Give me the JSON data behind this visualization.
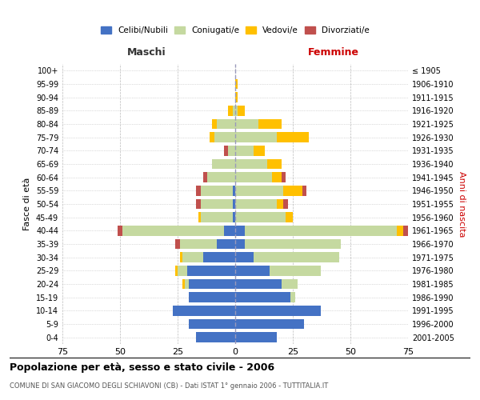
{
  "age_groups": [
    "0-4",
    "5-9",
    "10-14",
    "15-19",
    "20-24",
    "25-29",
    "30-34",
    "35-39",
    "40-44",
    "45-49",
    "50-54",
    "55-59",
    "60-64",
    "65-69",
    "70-74",
    "75-79",
    "80-84",
    "85-89",
    "90-94",
    "95-99",
    "100+"
  ],
  "birth_years": [
    "2001-2005",
    "1996-2000",
    "1991-1995",
    "1986-1990",
    "1981-1985",
    "1976-1980",
    "1971-1975",
    "1966-1970",
    "1961-1965",
    "1956-1960",
    "1951-1955",
    "1946-1950",
    "1941-1945",
    "1936-1940",
    "1931-1935",
    "1926-1930",
    "1921-1925",
    "1916-1920",
    "1911-1915",
    "1906-1910",
    "≤ 1905"
  ],
  "males": {
    "celibi": [
      17,
      20,
      27,
      20,
      20,
      21,
      14,
      8,
      5,
      1,
      1,
      1,
      0,
      0,
      0,
      0,
      0,
      0,
      0,
      0,
      0
    ],
    "coniugati": [
      0,
      0,
      0,
      0,
      2,
      4,
      9,
      16,
      44,
      14,
      14,
      14,
      12,
      10,
      3,
      9,
      8,
      1,
      0,
      0,
      0
    ],
    "vedovi": [
      0,
      0,
      0,
      0,
      1,
      1,
      1,
      0,
      0,
      1,
      0,
      0,
      0,
      0,
      0,
      2,
      2,
      2,
      0,
      0,
      0
    ],
    "divorziati": [
      0,
      0,
      0,
      0,
      0,
      0,
      0,
      2,
      2,
      0,
      2,
      2,
      2,
      0,
      2,
      0,
      0,
      0,
      0,
      0,
      0
    ]
  },
  "females": {
    "nubili": [
      18,
      30,
      37,
      24,
      20,
      15,
      8,
      4,
      4,
      0,
      0,
      0,
      0,
      0,
      0,
      0,
      0,
      0,
      0,
      0,
      0
    ],
    "coniugate": [
      0,
      0,
      0,
      2,
      7,
      22,
      37,
      42,
      66,
      22,
      18,
      21,
      16,
      14,
      8,
      18,
      10,
      1,
      0,
      0,
      0
    ],
    "vedove": [
      0,
      0,
      0,
      0,
      0,
      0,
      0,
      0,
      3,
      3,
      3,
      8,
      4,
      6,
      5,
      14,
      10,
      3,
      1,
      1,
      0
    ],
    "divorziate": [
      0,
      0,
      0,
      0,
      0,
      0,
      0,
      0,
      2,
      0,
      2,
      2,
      2,
      0,
      0,
      0,
      0,
      0,
      0,
      0,
      0
    ]
  },
  "colors": {
    "celibi": "#4472c4",
    "coniugati": "#c5d9a0",
    "vedovi": "#ffc000",
    "divorziati": "#c0504d"
  },
  "xlim": 75,
  "title": "Popolazione per età, sesso e stato civile - 2006",
  "subtitle": "COMUNE DI SAN GIACOMO DEGLI SCHIAVONI (CB) - Dati ISTAT 1° gennaio 2006 - TUTTITALIA.IT",
  "ylabel_left": "Fasce di età",
  "ylabel_right": "Anni di nascita",
  "header_maschi": "Maschi",
  "header_femmine": "Femmine",
  "bg_color": "#ffffff",
  "grid_color": "#bbbbbb",
  "bar_height": 0.75
}
